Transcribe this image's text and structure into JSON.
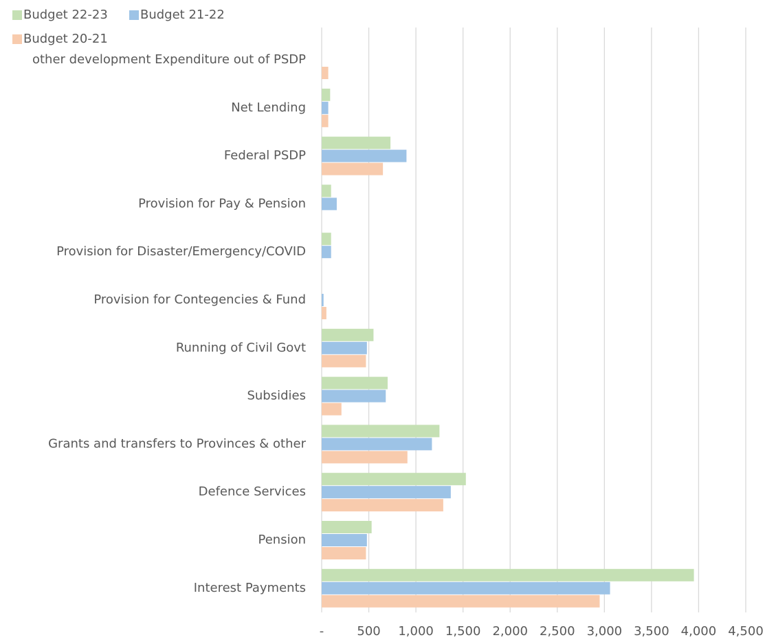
{
  "chart_data": {
    "type": "bar",
    "orientation": "horizontal",
    "categories": [
      "other development Expenditure out of PSDP",
      "Net Lending",
      "Federal PSDP",
      "Provision for Pay & Pension",
      "Provision for Disaster/Emergency/COVID",
      "Provision for Contegencies & Fund",
      "Running of Civil Govt",
      "Subsidies",
      "Grants and transfers to Provinces & other",
      "Defence Services",
      "Pension",
      "Interest Payments"
    ],
    "series": [
      {
        "name": "Budget 22-23",
        "color": "#c5e0b4",
        "values": [
          null,
          90,
          730,
          100,
          100,
          null,
          550,
          700,
          1250,
          1530,
          530,
          3950
        ]
      },
      {
        "name": "Budget 21-22",
        "color": "#9dc3e6",
        "values": [
          null,
          70,
          900,
          160,
          100,
          20,
          480,
          680,
          1170,
          1370,
          480,
          3060
        ]
      },
      {
        "name": "Budget 20-21",
        "color": "#f8cbad",
        "values": [
          70,
          70,
          650,
          null,
          null,
          50,
          470,
          210,
          910,
          1290,
          470,
          2950
        ]
      }
    ],
    "xlim": [
      0,
      4500
    ],
    "xticks": [
      {
        "value": 0,
        "label": "-"
      },
      500,
      {
        "value": 1000,
        "label": "1,000"
      },
      {
        "value": 1500,
        "label": "1,500"
      },
      {
        "value": 2000,
        "label": "2,000"
      },
      {
        "value": 2500,
        "label": "2,500"
      },
      {
        "value": 3000,
        "label": "3,000"
      },
      {
        "value": 3500,
        "label": "3,500"
      },
      {
        "value": 4000,
        "label": "4,000"
      },
      {
        "value": 4500,
        "label": "4,500"
      }
    ],
    "grid": true,
    "legend": "top-left"
  }
}
